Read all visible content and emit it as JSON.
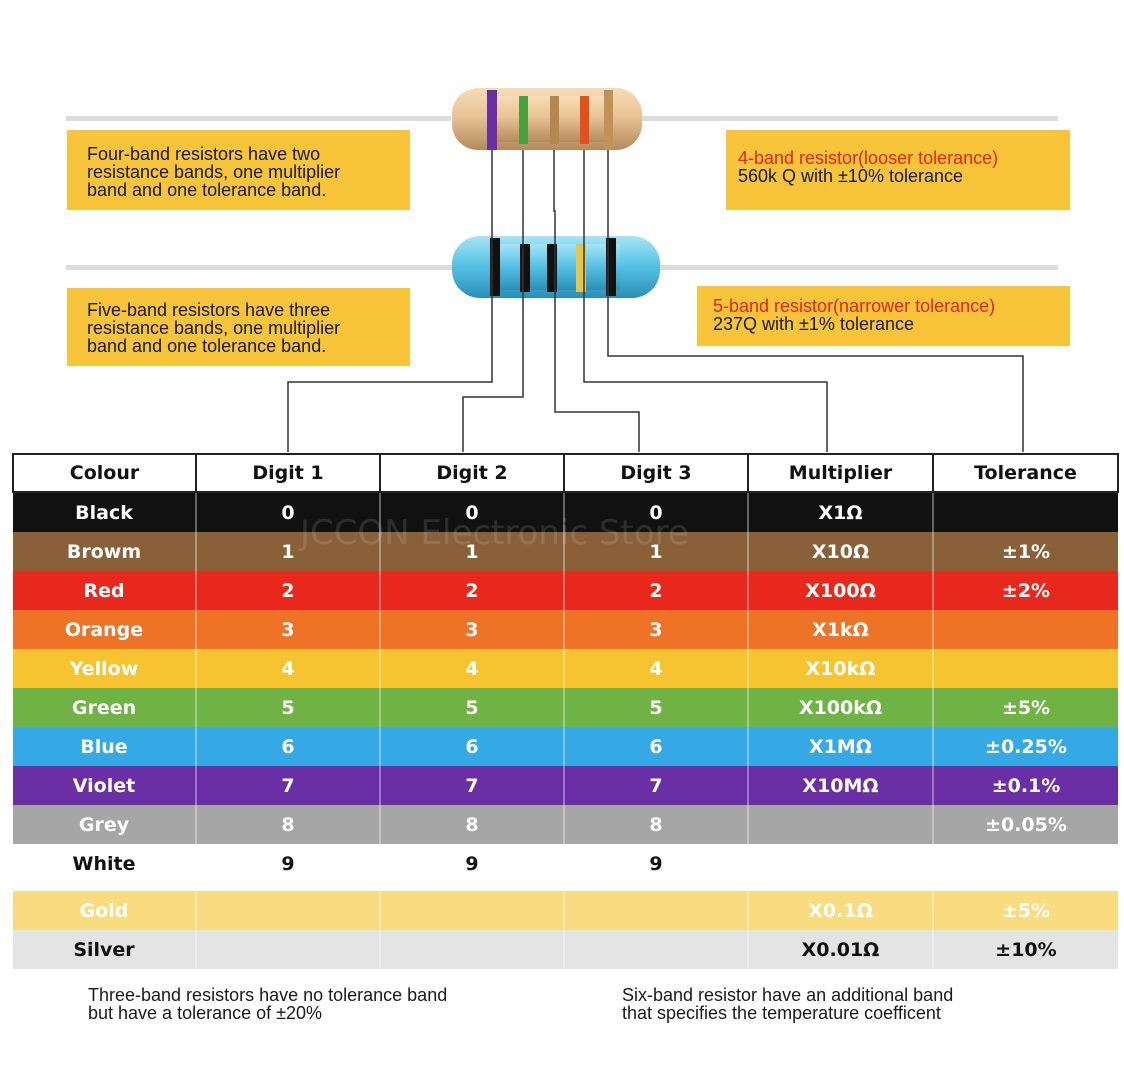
{
  "notes": {
    "four_band": [
      "Four-band resistors have two",
      "resistance bands, one multiplier",
      "band and one tolerance band."
    ],
    "five_band": [
      "Five-band resistors have three",
      "resistance bands, one multiplier",
      "band and one tolerance band."
    ],
    "four_band_example": {
      "title": "4-band resistor(looser tolerance)",
      "text": "560k Q with ±10% tolerance"
    },
    "five_band_example": {
      "title": "5-band resistor(narrower tolerance)",
      "text": "237Q with ±1% tolerance"
    }
  },
  "table": {
    "headers": [
      "Colour",
      "Digit 1",
      "Digit 2",
      "Digit 3",
      "Multiplier",
      "Tolerance"
    ],
    "rows": [
      {
        "cells": [
          "Black",
          "0",
          "0",
          "0",
          "X1Ω",
          ""
        ],
        "color": "#111111",
        "text": "#ffffff"
      },
      {
        "cells": [
          "Browm",
          "1",
          "1",
          "1",
          "X10Ω",
          "±1%"
        ],
        "color": "#8a6038",
        "text": "#ffffff"
      },
      {
        "cells": [
          "Red",
          "2",
          "2",
          "2",
          "X100Ω",
          "±2%"
        ],
        "color": "#e8281c",
        "text": "#ffffff"
      },
      {
        "cells": [
          "Orange",
          "3",
          "3",
          "3",
          "X1kΩ",
          ""
        ],
        "color": "#ef7326",
        "text": "#ffffff"
      },
      {
        "cells": [
          "Yellow",
          "4",
          "4",
          "4",
          "X10kΩ",
          ""
        ],
        "color": "#f6c431",
        "text": "#ffffff"
      },
      {
        "cells": [
          "Green",
          "5",
          "5",
          "5",
          "X100kΩ",
          "±5%"
        ],
        "color": "#6fb344",
        "text": "#ffffff"
      },
      {
        "cells": [
          "Blue",
          "6",
          "6",
          "6",
          "X1MΩ",
          "±0.25%"
        ],
        "color": "#35a9e6",
        "text": "#ffffff"
      },
      {
        "cells": [
          "Violet",
          "7",
          "7",
          "7",
          "X10MΩ",
          "±0.1%"
        ],
        "color": "#6a2fa5",
        "text": "#ffffff"
      },
      {
        "cells": [
          "Grey",
          "8",
          "8",
          "8",
          "",
          "±0.05%"
        ],
        "color": "#a6a6a6",
        "text": "#ffffff"
      },
      {
        "cells": [
          "White",
          "9",
          "9",
          "9",
          "",
          ""
        ],
        "color": "#ffffff",
        "text": "#111111"
      },
      {
        "cells": [
          "Gold",
          "",
          "",
          "",
          "X0.1Ω",
          "±5%"
        ],
        "color": "#f9dc80",
        "text": "#ffffff"
      },
      {
        "cells": [
          "Silver",
          "",
          "",
          "",
          "X0.01Ω",
          "±10%"
        ],
        "color": "#e4e4e4",
        "text": "#111111"
      }
    ]
  },
  "footnotes": {
    "three_band": [
      "Three-band resistors have no tolerance band",
      "but have a tolerance of ±20%"
    ],
    "six_band": [
      "Six-band resistor have an additional band",
      "that specifies the temperature coefficent"
    ]
  },
  "watermark": "JCCON Electronic Store",
  "colors": {
    "note_bg": "#f8c43a",
    "title_red": "#e2261a",
    "resistor_beige": "#e8c496",
    "resistor_blue": "#59c5e6"
  }
}
